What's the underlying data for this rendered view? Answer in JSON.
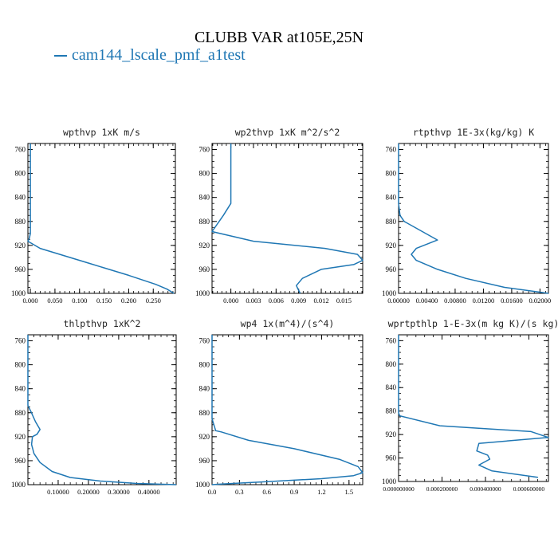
{
  "figure": {
    "title": "CLUBB VAR at105E,25N",
    "legend_label": "cam144_lscale_pmf_a1test",
    "series_color": "#1f77b4"
  },
  "chart_data": [
    {
      "type": "line",
      "title": "wpthvp   1xK m/s",
      "xlim": [
        -0.005,
        0.295
      ],
      "xticks": [
        "0.000",
        "0.050",
        "0.100",
        "0.150",
        "0.200",
        "0.250"
      ],
      "xtick_values": [
        0,
        0.05,
        0.1,
        0.15,
        0.2,
        0.25
      ],
      "ylim": [
        750,
        1000
      ],
      "yticks": [
        760,
        800,
        840,
        880,
        920,
        960,
        1000
      ],
      "series": [
        {
          "x": [
            0.0,
            0.0,
            0.0,
            0.0,
            0.0,
            -0.002,
            -0.005,
            0.02,
            0.06,
            0.12,
            0.2,
            0.255,
            0.278,
            0.292
          ],
          "y": [
            750,
            800,
            850,
            880,
            900,
            908,
            913,
            925,
            935,
            950,
            970,
            985,
            993,
            1000
          ]
        }
      ]
    },
    {
      "type": "line",
      "title": "wp2thvp   1xK m^2/s^2",
      "xlim": [
        -0.0025,
        0.0175
      ],
      "xticks": [
        "0.000",
        "0.003",
        "0.006",
        "0.009",
        "0.012",
        "0.015"
      ],
      "xtick_values": [
        0,
        0.003,
        0.006,
        0.009,
        0.012,
        0.015
      ],
      "ylim": [
        750,
        1000
      ],
      "yticks": [
        760,
        800,
        840,
        880,
        920,
        960,
        1000
      ],
      "series": [
        {
          "x": [
            0.0,
            0.0,
            0.0,
            -0.001,
            -0.0025,
            0.003,
            0.0125,
            0.0168,
            0.0175,
            0.0163,
            0.012,
            0.0095,
            0.0087,
            0.0088,
            0.0092
          ],
          "y": [
            750,
            800,
            850,
            870,
            897,
            913,
            925,
            935,
            945,
            952,
            960,
            975,
            987,
            990,
            1000
          ]
        }
      ]
    },
    {
      "type": "line",
      "title": "rtpthvp   1E-3x(kg/kg) K",
      "xlim": [
        0,
        0.0212
      ],
      "xticks": [
        "0.00000",
        "0.00400",
        "0.00800",
        "0.01200",
        "0.01600",
        "0.02000"
      ],
      "xtick_values": [
        0,
        0.004,
        0.008,
        0.012,
        0.016,
        0.02
      ],
      "ylim": [
        750,
        1000
      ],
      "yticks": [
        760,
        800,
        840,
        880,
        920,
        960,
        1000
      ],
      "series": [
        {
          "x": [
            0.0,
            0.0,
            0.0,
            0.0002,
            0.0008,
            0.0055,
            0.0025,
            0.0018,
            0.0025,
            0.0055,
            0.0095,
            0.015,
            0.0212
          ],
          "y": [
            750,
            800,
            850,
            870,
            880,
            911,
            925,
            935,
            945,
            960,
            975,
            990,
            1000
          ]
        }
      ]
    },
    {
      "type": "line",
      "title": "thlpthvp   1xK^2",
      "xlim": [
        0,
        0.49
      ],
      "xticks": [
        "0.10000",
        "0.20000",
        "0.30000",
        "0.40000"
      ],
      "xtick_values": [
        0.1,
        0.2,
        0.3,
        0.4
      ],
      "ylim": [
        750,
        1000
      ],
      "yticks": [
        760,
        800,
        840,
        880,
        920,
        960,
        1000
      ],
      "series": [
        {
          "x": [
            0.0,
            0.0,
            0.0,
            0.0,
            0.01,
            0.025,
            0.04,
            0.03,
            0.015,
            0.012,
            0.02,
            0.04,
            0.08,
            0.14,
            0.24,
            0.36,
            0.49
          ],
          "y": [
            750,
            800,
            850,
            868,
            878,
            895,
            908,
            916,
            920,
            933,
            948,
            963,
            978,
            988,
            994,
            998,
            1000
          ]
        }
      ]
    },
    {
      "type": "line",
      "title": "wp4   1x(m^4)/(s^4)",
      "xlim": [
        0,
        1.65
      ],
      "xticks": [
        "0.0",
        "0.3",
        "0.6",
        "0.9",
        "1.2",
        "1.5"
      ],
      "xtick_values": [
        0,
        0.3,
        0.6,
        0.9,
        1.2,
        1.5
      ],
      "ylim": [
        750,
        1000
      ],
      "yticks": [
        760,
        800,
        840,
        880,
        920,
        960,
        1000
      ],
      "series": [
        {
          "x": [
            0.0,
            0.0,
            0.0,
            0.0,
            0.02,
            0.04,
            0.1,
            0.4,
            0.9,
            1.4,
            1.6,
            1.65,
            1.55,
            1.2,
            0.6,
            0.1,
            0.0
          ],
          "y": [
            750,
            800,
            850,
            890,
            900,
            910,
            912,
            926,
            940,
            958,
            970,
            980,
            985,
            990,
            995,
            999,
            1000
          ]
        }
      ]
    },
    {
      "type": "line",
      "title": "wprtpthlp   1-E-3x(m kg K)/(s kg)",
      "xlim": [
        0,
        0.00069
      ],
      "xticks": [
        "0.000000000",
        "0.000200000",
        "0.000400000",
        "0.000600000"
      ],
      "xtick_values": [
        0,
        0.0002,
        0.0004,
        0.0006
      ],
      "ylim": [
        750,
        1000
      ],
      "yticks": [
        760,
        800,
        840,
        880,
        920,
        960,
        1000
      ],
      "series": [
        {
          "x": [
            0.0,
            0.0,
            0.0,
            0.0,
            5e-06,
            0.00019,
            0.00061,
            0.00069,
            0.00037,
            0.00036,
            0.00041,
            0.00042,
            0.00037,
            0.00043,
            0.00064,
            0.00062
          ],
          "y": [
            750,
            800,
            850,
            883,
            888,
            905,
            915,
            925,
            935,
            948,
            955,
            962,
            972,
            982,
            993,
            992
          ]
        }
      ]
    }
  ]
}
